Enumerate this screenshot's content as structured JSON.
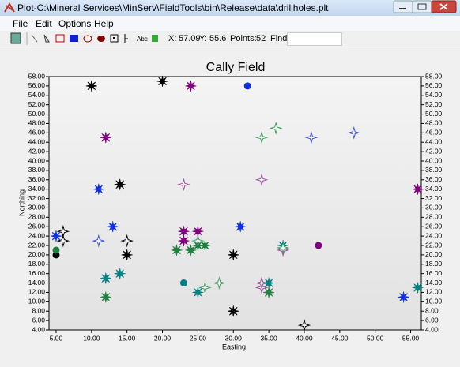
{
  "window": {
    "title": "Plot-C:\\Mineral Services\\MinServ\\FieldTools\\bin\\Release\\data\\drillholes.plt",
    "menu": [
      "File",
      "Edit",
      "Options",
      "Help"
    ],
    "toolbar": {
      "text_tool": "Abc",
      "x_label": "X:",
      "x_value": "57.09",
      "y_label": "Y:",
      "y_value": "55.6",
      "points_label": "Points:",
      "points_value": "52",
      "find_label": "Find:"
    }
  },
  "chart_data": {
    "type": "scatter",
    "title": "Cally Field",
    "x_label": "Easting",
    "y_label": "Northing",
    "xlim": [
      4,
      56.5
    ],
    "ylim": [
      4,
      58
    ],
    "grid": false,
    "xticks": [
      {
        "value": 5,
        "label": "5.00"
      },
      {
        "value": 10,
        "label": "10.00"
      },
      {
        "value": 15,
        "label": "15.00"
      },
      {
        "value": 20,
        "label": "20.00"
      },
      {
        "value": 25,
        "label": "25.00"
      },
      {
        "value": 30,
        "label": "30.00"
      },
      {
        "value": 35,
        "label": "35.00"
      },
      {
        "value": 40,
        "label": "40.00"
      },
      {
        "value": 45,
        "label": "45.00"
      },
      {
        "value": 50,
        "label": "50.00"
      },
      {
        "value": 55,
        "label": "55.00"
      }
    ],
    "yticks": [
      {
        "value": 4,
        "label": "4.00"
      },
      {
        "value": 6,
        "label": "6.00"
      },
      {
        "value": 8,
        "label": "8.00"
      },
      {
        "value": 10,
        "label": "10.00"
      },
      {
        "value": 12,
        "label": "12.00"
      },
      {
        "value": 14,
        "label": "14.00"
      },
      {
        "value": 16,
        "label": "16.00"
      },
      {
        "value": 18,
        "label": "18.00"
      },
      {
        "value": 20,
        "label": "20.00"
      },
      {
        "value": 22,
        "label": "22.00"
      },
      {
        "value": 24,
        "label": "24.00"
      },
      {
        "value": 26,
        "label": "26.00"
      },
      {
        "value": 28,
        "label": "28.00"
      },
      {
        "value": 30,
        "label": "30.00"
      },
      {
        "value": 32,
        "label": "32.00"
      },
      {
        "value": 34,
        "label": "34.00"
      },
      {
        "value": 36,
        "label": "36.00"
      },
      {
        "value": 38,
        "label": "38.00"
      },
      {
        "value": 40,
        "label": "40.00"
      },
      {
        "value": 42,
        "label": "42.00"
      },
      {
        "value": 44,
        "label": "44.00"
      },
      {
        "value": 46,
        "label": "46.00"
      },
      {
        "value": 48,
        "label": "48.00"
      },
      {
        "value": 50,
        "label": "50.00"
      },
      {
        "value": 52,
        "label": "52.00"
      },
      {
        "value": 54,
        "label": "54.00"
      },
      {
        "value": 56,
        "label": "56.00"
      },
      {
        "value": 58,
        "label": "58.00"
      }
    ],
    "series": [
      {
        "color": "#000000",
        "marker": "burst",
        "x": [
          10,
          20,
          14,
          15,
          30,
          30
        ],
        "values": [
          56,
          57,
          35,
          20,
          20,
          8
        ]
      },
      {
        "color": "#000000",
        "marker": "star4",
        "x": [
          6,
          6,
          15,
          40
        ],
        "values": [
          25,
          23,
          23,
          5
        ]
      },
      {
        "color": "#000000",
        "marker": "circle",
        "x": [
          5
        ],
        "values": [
          20
        ]
      },
      {
        "color": "#800080",
        "marker": "burst",
        "x": [
          24,
          12,
          23,
          25,
          23,
          56
        ],
        "values": [
          56,
          45,
          25,
          25,
          23,
          34
        ]
      },
      {
        "color": "#a050a0",
        "marker": "star4",
        "x": [
          23,
          34,
          37,
          34,
          34
        ],
        "values": [
          35,
          36,
          21,
          13,
          14
        ]
      },
      {
        "color": "#800080",
        "marker": "circle",
        "x": [
          42
        ],
        "values": [
          22
        ]
      },
      {
        "color": "#1030e0",
        "marker": "burst",
        "x": [
          11,
          13,
          5,
          31,
          54
        ],
        "values": [
          34,
          26,
          24,
          26,
          11
        ]
      },
      {
        "color": "#1030e0",
        "marker": "circle",
        "x": [
          32
        ],
        "values": [
          56
        ]
      },
      {
        "color": "#4050d0",
        "marker": "star4",
        "x": [
          11,
          41,
          47
        ],
        "values": [
          23,
          45,
          46
        ]
      },
      {
        "color": "#008080",
        "marker": "burst",
        "x": [
          12,
          14,
          25,
          35,
          37,
          56
        ],
        "values": [
          15,
          16,
          12,
          14,
          22,
          13
        ]
      },
      {
        "color": "#008080",
        "marker": "circle",
        "x": [
          23
        ],
        "values": [
          14
        ]
      },
      {
        "color": "#208040",
        "marker": "burst",
        "x": [
          12,
          22,
          24,
          25,
          26,
          35
        ],
        "values": [
          11,
          21,
          21,
          22,
          22,
          12
        ]
      },
      {
        "color": "#208040",
        "marker": "circle",
        "x": [
          5
        ],
        "values": [
          21
        ]
      },
      {
        "color": "#40a060",
        "marker": "star4",
        "x": [
          34,
          36,
          25,
          26,
          28,
          37
        ],
        "values": [
          45,
          47,
          23,
          13,
          14,
          21.5
        ]
      }
    ]
  }
}
